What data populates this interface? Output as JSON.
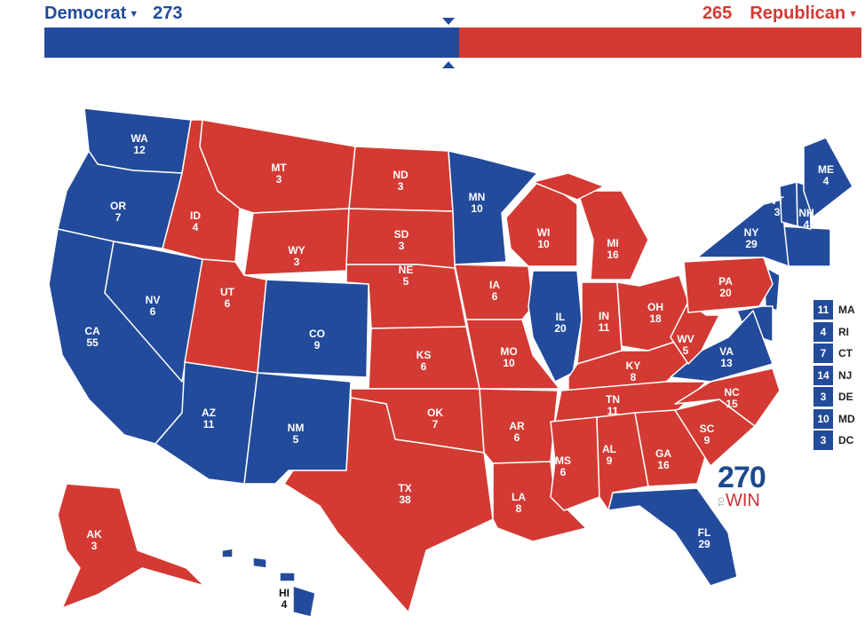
{
  "header": {
    "dem": {
      "label": "Democrat",
      "votes": "273",
      "color": "#234b9b"
    },
    "rep": {
      "label": "Republican",
      "votes": "265",
      "color": "#d33a33"
    },
    "caret_icon": "caret-down-icon",
    "threshold_marker": "triangle-marker-icon"
  },
  "progress": {
    "dem_votes": 273,
    "rep_votes": 265,
    "total": 538
  },
  "states": [
    {
      "abbr": "WA",
      "ev": "12",
      "party": "D"
    },
    {
      "abbr": "OR",
      "ev": "7",
      "party": "D"
    },
    {
      "abbr": "CA",
      "ev": "55",
      "party": "D"
    },
    {
      "abbr": "NV",
      "ev": "6",
      "party": "D"
    },
    {
      "abbr": "ID",
      "ev": "4",
      "party": "R"
    },
    {
      "abbr": "MT",
      "ev": "3",
      "party": "R"
    },
    {
      "abbr": "WY",
      "ev": "3",
      "party": "R"
    },
    {
      "abbr": "UT",
      "ev": "6",
      "party": "R"
    },
    {
      "abbr": "CO",
      "ev": "9",
      "party": "D"
    },
    {
      "abbr": "AZ",
      "ev": "11",
      "party": "D"
    },
    {
      "abbr": "NM",
      "ev": "5",
      "party": "D"
    },
    {
      "abbr": "ND",
      "ev": "3",
      "party": "R"
    },
    {
      "abbr": "SD",
      "ev": "3",
      "party": "R"
    },
    {
      "abbr": "NE",
      "ev": "5",
      "party": "R"
    },
    {
      "abbr": "KS",
      "ev": "6",
      "party": "R"
    },
    {
      "abbr": "OK",
      "ev": "7",
      "party": "R"
    },
    {
      "abbr": "TX",
      "ev": "38",
      "party": "R"
    },
    {
      "abbr": "MN",
      "ev": "10",
      "party": "D"
    },
    {
      "abbr": "IA",
      "ev": "6",
      "party": "R"
    },
    {
      "abbr": "MO",
      "ev": "10",
      "party": "R"
    },
    {
      "abbr": "AR",
      "ev": "6",
      "party": "R"
    },
    {
      "abbr": "LA",
      "ev": "8",
      "party": "R"
    },
    {
      "abbr": "WI",
      "ev": "10",
      "party": "R"
    },
    {
      "abbr": "IL",
      "ev": "20",
      "party": "D"
    },
    {
      "abbr": "MI",
      "ev": "16",
      "party": "R"
    },
    {
      "abbr": "IN",
      "ev": "11",
      "party": "R"
    },
    {
      "abbr": "OH",
      "ev": "18",
      "party": "R"
    },
    {
      "abbr": "KY",
      "ev": "8",
      "party": "R"
    },
    {
      "abbr": "TN",
      "ev": "11",
      "party": "R"
    },
    {
      "abbr": "MS",
      "ev": "6",
      "party": "R"
    },
    {
      "abbr": "AL",
      "ev": "9",
      "party": "R"
    },
    {
      "abbr": "GA",
      "ev": "16",
      "party": "R"
    },
    {
      "abbr": "FL",
      "ev": "29",
      "party": "D"
    },
    {
      "abbr": "SC",
      "ev": "9",
      "party": "R"
    },
    {
      "abbr": "NC",
      "ev": "15",
      "party": "R"
    },
    {
      "abbr": "VA",
      "ev": "13",
      "party": "D"
    },
    {
      "abbr": "WV",
      "ev": "5",
      "party": "R"
    },
    {
      "abbr": "PA",
      "ev": "20",
      "party": "R"
    },
    {
      "abbr": "NY",
      "ev": "29",
      "party": "D"
    },
    {
      "abbr": "VT",
      "ev": "3",
      "party": "D"
    },
    {
      "abbr": "NH",
      "ev": "4",
      "party": "D"
    },
    {
      "abbr": "ME",
      "ev": "4",
      "party": "D"
    },
    {
      "abbr": "AK",
      "ev": "3",
      "party": "R"
    },
    {
      "abbr": "HI",
      "ev": "4",
      "party": "D"
    }
  ],
  "small_states": [
    {
      "abbr": "MA",
      "ev": "11",
      "party": "D"
    },
    {
      "abbr": "RI",
      "ev": "4",
      "party": "D"
    },
    {
      "abbr": "CT",
      "ev": "7",
      "party": "D"
    },
    {
      "abbr": "NJ",
      "ev": "14",
      "party": "D"
    },
    {
      "abbr": "DE",
      "ev": "3",
      "party": "D"
    },
    {
      "abbr": "MD",
      "ev": "10",
      "party": "D"
    },
    {
      "abbr": "DC",
      "ev": "3",
      "party": "D"
    }
  ],
  "logo": {
    "number": "270",
    "to": "TO",
    "win": "WIN"
  }
}
